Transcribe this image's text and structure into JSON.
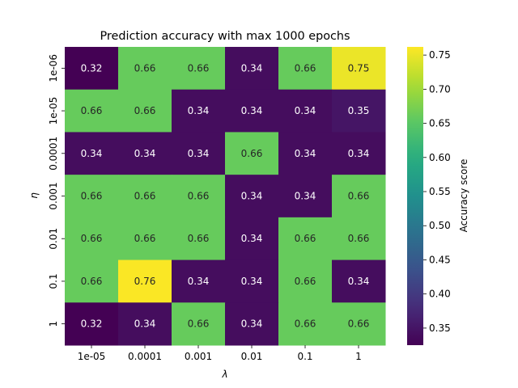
{
  "chart_data": {
    "type": "heatmap",
    "title": "Prediction accuracy with max 1000 epochs",
    "xlabel": "λ",
    "ylabel": "η",
    "x_categories": [
      "1e-05",
      "0.0001",
      "0.001",
      "0.01",
      "0.1",
      "1"
    ],
    "y_categories": [
      "1e-06",
      "1e-05",
      "0.0001",
      "0.001",
      "0.01",
      "0.1",
      "1"
    ],
    "values": [
      [
        0.32,
        0.66,
        0.66,
        0.34,
        0.66,
        0.75
      ],
      [
        0.66,
        0.66,
        0.34,
        0.34,
        0.34,
        0.35
      ],
      [
        0.34,
        0.34,
        0.34,
        0.66,
        0.34,
        0.34
      ],
      [
        0.66,
        0.66,
        0.66,
        0.34,
        0.34,
        0.66
      ],
      [
        0.66,
        0.66,
        0.66,
        0.34,
        0.66,
        0.66
      ],
      [
        0.66,
        0.76,
        0.34,
        0.34,
        0.66,
        0.34
      ],
      [
        0.32,
        0.34,
        0.66,
        0.34,
        0.66,
        0.66
      ]
    ],
    "value_format": "0.00",
    "colormap": "viridis",
    "colorbar": {
      "label": "Accuracy score",
      "range": [
        0.325,
        0.762
      ],
      "ticks": [
        "0.35",
        "0.40",
        "0.45",
        "0.50",
        "0.55",
        "0.60",
        "0.65",
        "0.70",
        "0.75"
      ]
    },
    "grid": false,
    "legend": "colorbar-right"
  }
}
